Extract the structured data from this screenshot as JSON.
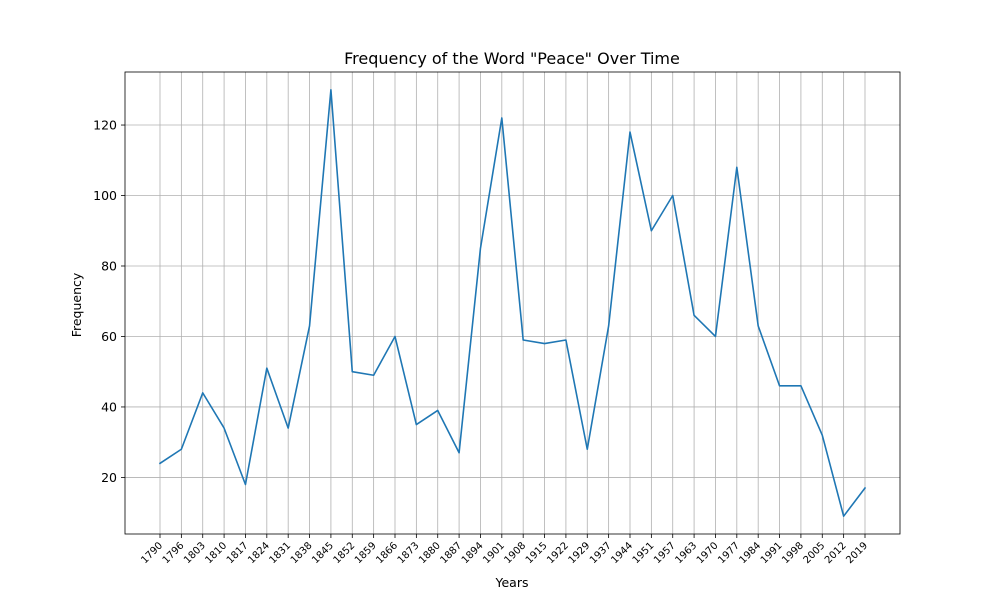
{
  "chart_data": {
    "type": "line",
    "title": "Frequency of the Word \"Peace\" Over Time",
    "xlabel": "Years",
    "ylabel": "Frequency",
    "x": [
      "1790",
      "1796",
      "1803",
      "1810",
      "1817",
      "1824",
      "1831",
      "1838",
      "1845",
      "1852",
      "1859",
      "1866",
      "1873",
      "1880",
      "1887",
      "1894",
      "1901",
      "1908",
      "1915",
      "1922",
      "1929",
      "1937",
      "1944",
      "1951",
      "1957",
      "1963",
      "1970",
      "1977",
      "1984",
      "1991",
      "1998",
      "2005",
      "2012",
      "2019"
    ],
    "series": [
      {
        "values": [
          24,
          28,
          44,
          34,
          18,
          51,
          34,
          63,
          130,
          50,
          49,
          60,
          35,
          39,
          27,
          85,
          122,
          59,
          58,
          59,
          28,
          63,
          118,
          90,
          100,
          66,
          60,
          108,
          63,
          46,
          46,
          32,
          9,
          17
        ],
        "color": "#1f77b4"
      }
    ],
    "yticks": [
      20,
      40,
      60,
      80,
      100,
      120
    ],
    "ylim": [
      3.95,
      135.05
    ],
    "grid": true
  }
}
